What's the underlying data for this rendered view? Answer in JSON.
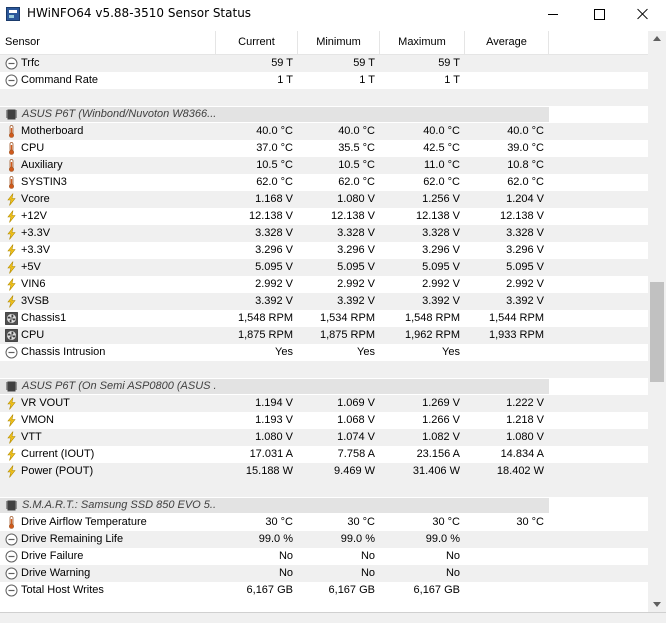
{
  "window": {
    "title": "HWiNFO64 v5.88-3510 Sensor Status"
  },
  "columns": [
    "Sensor",
    "Current",
    "Minimum",
    "Maximum",
    "Average"
  ],
  "rows": [
    {
      "type": "sensor",
      "icon": "clock",
      "label": "Trfc",
      "values": [
        "59 T",
        "59 T",
        "59 T",
        ""
      ]
    },
    {
      "type": "sensor",
      "icon": "clock",
      "label": "Command Rate",
      "values": [
        "1 T",
        "1 T",
        "1 T",
        ""
      ]
    },
    {
      "type": "blank"
    },
    {
      "type": "group",
      "icon": "chip",
      "label": "ASUS P6T (Winbond/Nuvoton W8366..."
    },
    {
      "type": "sensor",
      "icon": "thermometer",
      "label": "Motherboard",
      "values": [
        "40.0 °C",
        "40.0 °C",
        "40.0 °C",
        "40.0 °C"
      ]
    },
    {
      "type": "sensor",
      "icon": "thermometer",
      "label": "CPU",
      "values": [
        "37.0 °C",
        "35.5 °C",
        "42.5 °C",
        "39.0 °C"
      ]
    },
    {
      "type": "sensor",
      "icon": "thermometer",
      "label": "Auxiliary",
      "values": [
        "10.5 °C",
        "10.5 °C",
        "11.0 °C",
        "10.8 °C"
      ]
    },
    {
      "type": "sensor",
      "icon": "thermometer",
      "label": "SYSTIN3",
      "values": [
        "62.0 °C",
        "62.0 °C",
        "62.0 °C",
        "62.0 °C"
      ]
    },
    {
      "type": "sensor",
      "icon": "bolt",
      "label": "Vcore",
      "values": [
        "1.168 V",
        "1.080 V",
        "1.256 V",
        "1.204 V"
      ]
    },
    {
      "type": "sensor",
      "icon": "bolt",
      "label": "+12V",
      "values": [
        "12.138 V",
        "12.138 V",
        "12.138 V",
        "12.138 V"
      ]
    },
    {
      "type": "sensor",
      "icon": "bolt",
      "label": "+3.3V",
      "values": [
        "3.328 V",
        "3.328 V",
        "3.328 V",
        "3.328 V"
      ]
    },
    {
      "type": "sensor",
      "icon": "bolt",
      "label": "+3.3V",
      "values": [
        "3.296 V",
        "3.296 V",
        "3.296 V",
        "3.296 V"
      ]
    },
    {
      "type": "sensor",
      "icon": "bolt",
      "label": "+5V",
      "values": [
        "5.095 V",
        "5.095 V",
        "5.095 V",
        "5.095 V"
      ]
    },
    {
      "type": "sensor",
      "icon": "bolt",
      "label": "VIN6",
      "values": [
        "2.992 V",
        "2.992 V",
        "2.992 V",
        "2.992 V"
      ]
    },
    {
      "type": "sensor",
      "icon": "bolt",
      "label": "3VSB",
      "values": [
        "3.392 V",
        "3.392 V",
        "3.392 V",
        "3.392 V"
      ]
    },
    {
      "type": "sensor",
      "icon": "fan",
      "label": "Chassis1",
      "values": [
        "1,548 RPM",
        "1,534 RPM",
        "1,548 RPM",
        "1,544 RPM"
      ]
    },
    {
      "type": "sensor",
      "icon": "fan",
      "label": "CPU",
      "values": [
        "1,875 RPM",
        "1,875 RPM",
        "1,962 RPM",
        "1,933 RPM"
      ]
    },
    {
      "type": "sensor",
      "icon": "clock",
      "label": "Chassis Intrusion",
      "values": [
        "Yes",
        "Yes",
        "Yes",
        ""
      ]
    },
    {
      "type": "blank"
    },
    {
      "type": "group",
      "icon": "chip",
      "label": "ASUS P6T (On Semi ASP0800 (ASUS ..."
    },
    {
      "type": "sensor",
      "icon": "bolt",
      "label": "VR VOUT",
      "values": [
        "1.194 V",
        "1.069 V",
        "1.269 V",
        "1.222 V"
      ]
    },
    {
      "type": "sensor",
      "icon": "bolt",
      "label": "VMON",
      "values": [
        "1.193 V",
        "1.068 V",
        "1.266 V",
        "1.218 V"
      ]
    },
    {
      "type": "sensor",
      "icon": "bolt",
      "label": "VTT",
      "values": [
        "1.080 V",
        "1.074 V",
        "1.082 V",
        "1.080 V"
      ]
    },
    {
      "type": "sensor",
      "icon": "bolt",
      "label": "Current (IOUT)",
      "values": [
        "17.031 A",
        "7.758 A",
        "23.156 A",
        "14.834 A"
      ]
    },
    {
      "type": "sensor",
      "icon": "bolt",
      "label": "Power (POUT)",
      "values": [
        "15.188 W",
        "9.469 W",
        "31.406 W",
        "18.402 W"
      ]
    },
    {
      "type": "blank"
    },
    {
      "type": "group",
      "icon": "chip",
      "label": "S.M.A.R.T.: Samsung SSD 850 EVO 5..."
    },
    {
      "type": "sensor",
      "icon": "thermometer",
      "label": "Drive Airflow Temperature",
      "values": [
        "30 °C",
        "30 °C",
        "30 °C",
        "30 °C"
      ]
    },
    {
      "type": "sensor",
      "icon": "clock",
      "label": "Drive Remaining Life",
      "values": [
        "99.0 %",
        "99.0 %",
        "99.0 %",
        ""
      ]
    },
    {
      "type": "sensor",
      "icon": "clock",
      "label": "Drive Failure",
      "values": [
        "No",
        "No",
        "No",
        ""
      ]
    },
    {
      "type": "sensor",
      "icon": "clock",
      "label": "Drive Warning",
      "values": [
        "No",
        "No",
        "No",
        ""
      ]
    },
    {
      "type": "sensor",
      "icon": "clock",
      "label": "Total Host Writes",
      "values": [
        "6,167 GB",
        "6,167 GB",
        "6,167 GB",
        ""
      ]
    }
  ]
}
